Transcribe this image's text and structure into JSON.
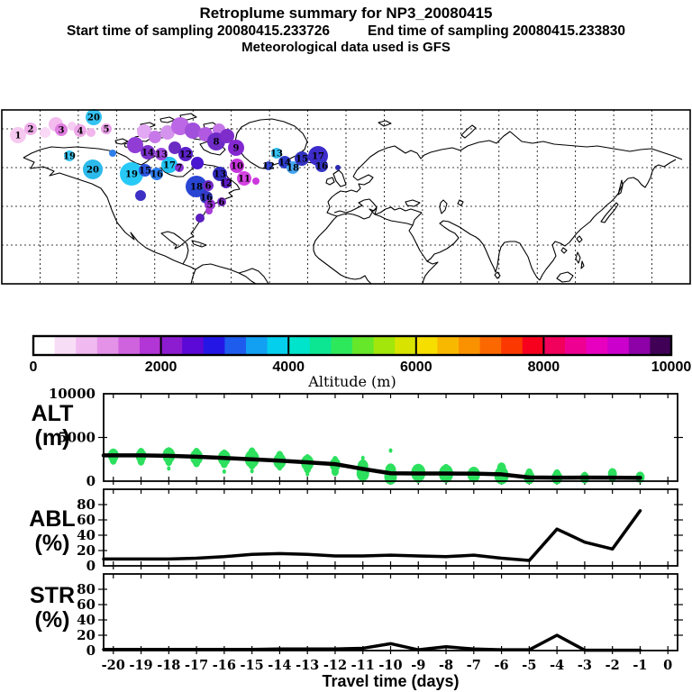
{
  "header": {
    "title": "Retroplume summary for NP3_20080415",
    "start_label": "Start time of sampling 20080415.233726",
    "end_label": "End time of sampling 20080415.233830",
    "met_label": "Meteorological data used is GFS"
  },
  "colorbar": {
    "title": "Altitude (m)",
    "min": 0,
    "max": 10000,
    "tick_labels": [
      "0",
      "2000",
      "4000",
      "6000",
      "8000",
      "10000"
    ],
    "colors": [
      "#ffffff",
      "#f8ddf7",
      "#f0baf0",
      "#e392e8",
      "#cf63de",
      "#b235d6",
      "#8d1cd0",
      "#5c08d6",
      "#2417e6",
      "#1e5cee",
      "#12a0f2",
      "#04d0ee",
      "#00e4cc",
      "#0ce692",
      "#2ee85c",
      "#66e72a",
      "#a2e60c",
      "#d8e400",
      "#f6de00",
      "#f9b800",
      "#fa9200",
      "#fb6800",
      "#fb3800",
      "#f7001e",
      "#f1005c",
      "#ee0092",
      "#e800c0",
      "#cc00cc",
      "#8e00a8",
      "#3f0055"
    ]
  },
  "map": {
    "markers": [
      {
        "x": 20,
        "y": 150,
        "r": 9,
        "c": "#f6c9f0",
        "label": "1"
      },
      {
        "x": 34,
        "y": 143,
        "r": 7,
        "c": "#f0aeea",
        "label": "2"
      },
      {
        "x": 50,
        "y": 147,
        "r": 6,
        "c": "#f9d9f5",
        "label": ""
      },
      {
        "x": 62,
        "y": 138,
        "r": 8,
        "c": "#f3bbee",
        "label": ""
      },
      {
        "x": 68,
        "y": 144,
        "r": 7,
        "c": "#e07de0",
        "label": "3"
      },
      {
        "x": 80,
        "y": 140,
        "r": 5,
        "c": "#f6cdf2",
        "label": ""
      },
      {
        "x": 89,
        "y": 145,
        "r": 7,
        "c": "#eda6e8",
        "label": "4"
      },
      {
        "x": 101,
        "y": 147,
        "r": 5,
        "c": "#f2b6ec",
        "label": ""
      },
      {
        "x": 104,
        "y": 130,
        "r": 9,
        "c": "#35c3f2",
        "label": "20"
      },
      {
        "x": 118,
        "y": 143,
        "r": 6,
        "c": "#e9a0e8",
        "label": "5"
      },
      {
        "x": 77,
        "y": 173,
        "r": 6,
        "c": "#3ac6f3",
        "label": "19"
      },
      {
        "x": 103,
        "y": 188,
        "r": 11,
        "c": "#2cbaeb",
        "label": "20"
      },
      {
        "x": 125,
        "y": 170,
        "r": 4,
        "c": "#2f7ee9",
        "label": ""
      },
      {
        "x": 146,
        "y": 193,
        "r": 13,
        "c": "#27caf7",
        "label": "19"
      },
      {
        "x": 161,
        "y": 189,
        "r": 7,
        "c": "#2c55de",
        "label": "15"
      },
      {
        "x": 174,
        "y": 193,
        "r": 7,
        "c": "#2d7eef",
        "label": "16"
      },
      {
        "x": 188,
        "y": 183,
        "r": 9,
        "c": "#21c3f1",
        "label": "17"
      },
      {
        "x": 199,
        "y": 186,
        "r": 5,
        "c": "#8531cf",
        "label": "7"
      },
      {
        "x": 218,
        "y": 207,
        "r": 12,
        "c": "#2845d3",
        "label": "18"
      },
      {
        "x": 229,
        "y": 219,
        "r": 7,
        "c": "#343ac7",
        "label": "16"
      },
      {
        "x": 231,
        "y": 206,
        "r": 6,
        "c": "#7029c7",
        "label": "6"
      },
      {
        "x": 160,
        "y": 146,
        "r": 8,
        "c": "#e3a8f3",
        "label": ""
      },
      {
        "x": 172,
        "y": 152,
        "r": 7,
        "c": "#c778e8",
        "label": ""
      },
      {
        "x": 186,
        "y": 147,
        "r": 8,
        "c": "#d494ee",
        "label": ""
      },
      {
        "x": 200,
        "y": 140,
        "r": 10,
        "c": "#bc67e5",
        "label": ""
      },
      {
        "x": 214,
        "y": 145,
        "r": 9,
        "c": "#a150dc",
        "label": ""
      },
      {
        "x": 228,
        "y": 149,
        "r": 8,
        "c": "#b15ae1",
        "label": ""
      },
      {
        "x": 243,
        "y": 144,
        "r": 7,
        "c": "#c475e8",
        "label": ""
      },
      {
        "x": 150,
        "y": 161,
        "r": 9,
        "c": "#903cd5",
        "label": ""
      },
      {
        "x": 164,
        "y": 169,
        "r": 8,
        "c": "#7c32ca",
        "label": "14"
      },
      {
        "x": 179,
        "y": 171,
        "r": 7,
        "c": "#9c47db",
        "label": "13"
      },
      {
        "x": 194,
        "y": 164,
        "r": 7,
        "c": "#6b2cc3",
        "label": ""
      },
      {
        "x": 206,
        "y": 171,
        "r": 8,
        "c": "#5b21c9",
        "label": "12"
      },
      {
        "x": 219,
        "y": 181,
        "r": 7,
        "c": "#4a16cf",
        "label": ""
      },
      {
        "x": 240,
        "y": 157,
        "r": 10,
        "c": "#6e2bc6",
        "label": "8"
      },
      {
        "x": 252,
        "y": 151,
        "r": 8,
        "c": "#7e2dca",
        "label": ""
      },
      {
        "x": 262,
        "y": 164,
        "r": 9,
        "c": "#8427d1",
        "label": "9"
      },
      {
        "x": 263,
        "y": 184,
        "r": 8,
        "c": "#c534db",
        "label": "10"
      },
      {
        "x": 271,
        "y": 198,
        "r": 8,
        "c": "#d442e2",
        "label": "11"
      },
      {
        "x": 251,
        "y": 203,
        "r": 6,
        "c": "#5d1cc5",
        "label": "12"
      },
      {
        "x": 244,
        "y": 193,
        "r": 8,
        "c": "#302cbc",
        "label": "13"
      },
      {
        "x": 156,
        "y": 217,
        "r": 6,
        "c": "#3c30c5",
        "label": ""
      },
      {
        "x": 233,
        "y": 227,
        "r": 6,
        "c": "#9434d3",
        "label": "5"
      },
      {
        "x": 246,
        "y": 224,
        "r": 5,
        "c": "#7e2ccb",
        "label": "6"
      },
      {
        "x": 222,
        "y": 242,
        "r": 5,
        "c": "#5a1ec0",
        "label": ""
      },
      {
        "x": 232,
        "y": 234,
        "r": 4,
        "c": "#a93ad6",
        "label": ""
      },
      {
        "x": 284,
        "y": 201,
        "r": 4,
        "c": "#cc36dd",
        "label": ""
      },
      {
        "x": 298,
        "y": 184,
        "r": 5,
        "c": "#3448d0",
        "label": "12"
      },
      {
        "x": 307,
        "y": 170,
        "r": 6,
        "c": "#33c2f2",
        "label": "13"
      },
      {
        "x": 316,
        "y": 180,
        "r": 7,
        "c": "#2c3bc9",
        "label": "14"
      },
      {
        "x": 325,
        "y": 186,
        "r": 7,
        "c": "#46a6f3",
        "label": "18"
      },
      {
        "x": 335,
        "y": 176,
        "r": 8,
        "c": "#3332c0",
        "label": "15"
      },
      {
        "x": 353,
        "y": 173,
        "r": 11,
        "c": "#3d2ccb",
        "label": "17"
      },
      {
        "x": 357,
        "y": 184,
        "r": 7,
        "c": "#3434c3",
        "label": "16"
      },
      {
        "x": 375,
        "y": 186,
        "r": 3,
        "c": "#2a2ab0",
        "label": ""
      }
    ]
  },
  "panel_labels": [
    {
      "l1": "ALT",
      "l2": "(m)"
    },
    {
      "l1": "ABL",
      "l2": "(%)"
    },
    {
      "l1": "STR",
      "l2": "(%)"
    }
  ],
  "chart_data": [
    {
      "type": "line",
      "name": "ALT",
      "ylabel": "ALT (m)",
      "ylim": [
        0,
        10000
      ],
      "yticks": [
        {
          "v": 0,
          "label": "0"
        },
        {
          "v": 5000,
          "label": "5000"
        },
        {
          "v": 10000,
          "label": "10000"
        }
      ],
      "x": [
        -20,
        -19,
        -18,
        -17,
        -16,
        -15,
        -14,
        -13,
        -12,
        -11,
        -10,
        -9,
        -8,
        -7,
        -6,
        -5,
        -4,
        -3,
        -2,
        -1
      ],
      "line": [
        2950,
        2950,
        2900,
        2800,
        2650,
        2500,
        2350,
        2150,
        1950,
        1400,
        900,
        880,
        870,
        860,
        780,
        430,
        400,
        410,
        400,
        380
      ],
      "scatter_color": "#2ce05e",
      "scatter": [
        [
          -20,
          3350,
          3
        ],
        [
          -20,
          2950,
          6
        ],
        [
          -20,
          2400,
          4
        ],
        [
          -19,
          3300,
          4
        ],
        [
          -19,
          2900,
          6
        ],
        [
          -19,
          2300,
          4
        ],
        [
          -18,
          3500,
          3
        ],
        [
          -18,
          2950,
          7
        ],
        [
          -18,
          2250,
          4
        ],
        [
          -18,
          1450,
          2
        ],
        [
          -17,
          3300,
          4
        ],
        [
          -17,
          2750,
          7
        ],
        [
          -17,
          2100,
          4
        ],
        [
          -16,
          3250,
          3
        ],
        [
          -16,
          2650,
          7
        ],
        [
          -16,
          2000,
          4
        ],
        [
          -16,
          1100,
          2
        ],
        [
          -15,
          3350,
          4
        ],
        [
          -15,
          2550,
          8
        ],
        [
          -15,
          1850,
          4
        ],
        [
          -15,
          1150,
          2
        ],
        [
          -14,
          2950,
          4
        ],
        [
          -14,
          2300,
          7
        ],
        [
          -14,
          1600,
          3
        ],
        [
          -13,
          2700,
          3
        ],
        [
          -13,
          2100,
          7
        ],
        [
          -13,
          1400,
          4
        ],
        [
          -13,
          800,
          2
        ],
        [
          -12,
          2500,
          3
        ],
        [
          -12,
          1900,
          6
        ],
        [
          -12,
          1100,
          4
        ],
        [
          -11,
          2650,
          2
        ],
        [
          -11,
          1700,
          6
        ],
        [
          -11,
          900,
          7
        ],
        [
          -11,
          250,
          3
        ],
        [
          -10,
          3500,
          2
        ],
        [
          -10,
          1250,
          6
        ],
        [
          -10,
          500,
          7
        ],
        [
          -9,
          1600,
          3
        ],
        [
          -9,
          950,
          8
        ],
        [
          -9,
          300,
          4
        ],
        [
          -8,
          1450,
          4
        ],
        [
          -8,
          850,
          8
        ],
        [
          -8,
          250,
          3
        ],
        [
          -7,
          1250,
          3
        ],
        [
          -7,
          750,
          7
        ],
        [
          -6,
          1500,
          5
        ],
        [
          -6,
          650,
          8
        ],
        [
          -5,
          950,
          4
        ],
        [
          -5,
          420,
          6
        ],
        [
          -4,
          850,
          4
        ],
        [
          -4,
          400,
          6
        ],
        [
          -3,
          700,
          3
        ],
        [
          -3,
          380,
          5
        ],
        [
          -2,
          850,
          5
        ],
        [
          -2,
          380,
          4
        ],
        [
          -1,
          450,
          5
        ]
      ]
    },
    {
      "type": "line",
      "name": "ABL",
      "ylabel": "ABL (%)",
      "ylim": [
        0,
        100
      ],
      "yticks": [
        {
          "v": 0,
          "label": "0"
        },
        {
          "v": 20,
          "label": "20"
        },
        {
          "v": 40,
          "label": "40"
        },
        {
          "v": 60,
          "label": "60"
        },
        {
          "v": 80,
          "label": "80"
        }
      ],
      "x": [
        -20,
        -19,
        -18,
        -17,
        -16,
        -15,
        -14,
        -13,
        -12,
        -11,
        -10,
        -9,
        -8,
        -7,
        -6,
        -5,
        -4,
        -3,
        -2,
        -1
      ],
      "line": [
        9,
        9,
        9,
        10,
        12,
        15,
        16,
        15,
        13,
        13,
        14,
        13,
        12,
        14,
        10,
        7,
        48,
        31,
        22,
        72
      ]
    },
    {
      "type": "line",
      "name": "STR",
      "ylabel": "STR (%)",
      "ylim": [
        0,
        100
      ],
      "yticks": [
        {
          "v": 0,
          "label": "0"
        },
        {
          "v": 20,
          "label": "20"
        },
        {
          "v": 40,
          "label": "40"
        },
        {
          "v": 60,
          "label": "60"
        },
        {
          "v": 80,
          "label": "80"
        }
      ],
      "x": [
        -20,
        -19,
        -18,
        -17,
        -16,
        -15,
        -14,
        -13,
        -12,
        -11,
        -10,
        -9,
        -8,
        -7,
        -6,
        -5,
        -4,
        -3,
        -2,
        -1
      ],
      "line": [
        1.5,
        1.5,
        1.5,
        1.5,
        1.5,
        1.5,
        2,
        2,
        2,
        3,
        9,
        1,
        5,
        2,
        1,
        1,
        20,
        0.5,
        0.5,
        0.5
      ]
    }
  ],
  "xaxis": {
    "label": "Travel time (days)",
    "tick_labels": [
      "-20",
      "-19",
      "-18",
      "-17",
      "-16",
      "-15",
      "-14",
      "-13",
      "-12",
      "-11",
      "-10",
      "-9",
      "-8",
      "-7",
      "-6",
      "-5",
      "-4",
      "-3",
      "-2",
      "-1",
      "0"
    ],
    "tick_values": [
      -20,
      -19,
      -18,
      -17,
      -16,
      -15,
      -14,
      -13,
      -12,
      -11,
      -10,
      -9,
      -8,
      -7,
      -6,
      -5,
      -4,
      -3,
      -2,
      -1,
      0
    ]
  }
}
